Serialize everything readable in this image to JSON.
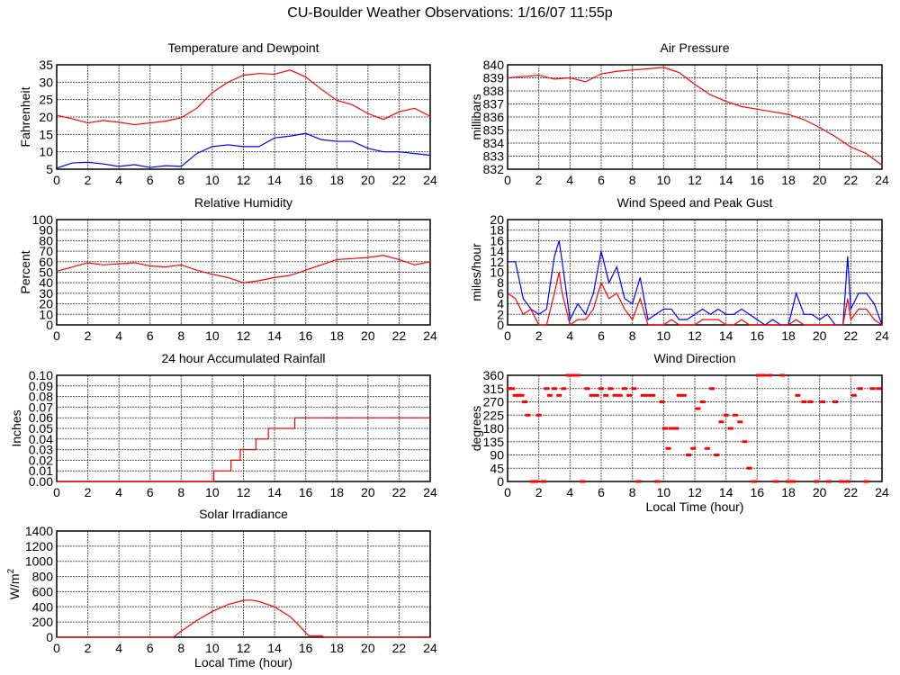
{
  "title": "CU-Boulder Weather Observations: 1/16/07 11:55p",
  "chart_data": [
    {
      "id": "temp",
      "type": "line",
      "title": "Temperature and Dewpoint",
      "ylabel": "Fahrenheit",
      "xlabel": "",
      "ylim": [
        5,
        35
      ],
      "yticks": [
        "5",
        "10",
        "15",
        "20",
        "25",
        "30",
        "35"
      ],
      "xlim": [
        0,
        24
      ],
      "xticks": [
        "0",
        "2",
        "4",
        "6",
        "8",
        "10",
        "12",
        "14",
        "16",
        "18",
        "20",
        "22",
        "24"
      ],
      "grid": true,
      "x": [
        0,
        1,
        2,
        3,
        4,
        5,
        6,
        7,
        8,
        9,
        10,
        11,
        12,
        13,
        14,
        15,
        16,
        17,
        18,
        19,
        20,
        21,
        22,
        23,
        24
      ],
      "series": [
        {
          "name": "Temperature",
          "color": "#ff0000",
          "values": [
            20.5,
            19.5,
            18.3,
            19,
            18.5,
            17.8,
            18.3,
            18.8,
            19.8,
            22.5,
            27,
            30,
            32,
            32.5,
            32.3,
            33.5,
            31.5,
            28,
            24.8,
            23.5,
            21,
            19.3,
            21.5,
            22.5,
            20.2
          ]
        },
        {
          "name": "Dewpoint",
          "color": "#0000ff",
          "values": [
            5.3,
            6.8,
            7,
            6.5,
            5.8,
            6.3,
            5.5,
            6,
            5.8,
            9.5,
            11.5,
            12,
            11.5,
            11.5,
            14,
            14.5,
            15.3,
            13.5,
            13,
            13,
            11,
            10,
            10,
            9.5,
            9
          ]
        }
      ]
    },
    {
      "id": "pressure",
      "type": "line",
      "title": "Air Pressure",
      "ylabel": "millibars",
      "xlabel": "",
      "ylim": [
        832,
        840
      ],
      "yticks": [
        "832",
        "833",
        "834",
        "835",
        "836",
        "837",
        "838",
        "839",
        "840"
      ],
      "xlim": [
        0,
        24
      ],
      "xticks": [
        "0",
        "2",
        "4",
        "6",
        "8",
        "10",
        "12",
        "14",
        "16",
        "18",
        "20",
        "22",
        "24"
      ],
      "grid": true,
      "x": [
        0,
        1,
        2,
        3,
        4,
        5,
        6,
        7,
        8,
        9,
        10,
        11,
        12,
        13,
        14,
        15,
        16,
        17,
        18,
        19,
        20,
        21,
        22,
        23,
        24
      ],
      "series": [
        {
          "name": "Pressure",
          "color": "#ff0000",
          "values": [
            839,
            839.1,
            839.2,
            838.9,
            839,
            838.7,
            839.3,
            839.5,
            839.6,
            839.7,
            839.8,
            839.4,
            838.5,
            837.7,
            837.2,
            836.8,
            836.6,
            836.4,
            836.2,
            835.8,
            835.2,
            834.5,
            833.7,
            833.2,
            832.3
          ]
        }
      ]
    },
    {
      "id": "rh",
      "type": "line",
      "title": "Relative Humidity",
      "ylabel": "Percent",
      "xlabel": "",
      "ylim": [
        0,
        100
      ],
      "yticks": [
        "0",
        "10",
        "20",
        "30",
        "40",
        "50",
        "60",
        "70",
        "80",
        "90",
        "100"
      ],
      "xlim": [
        0,
        24
      ],
      "xticks": [
        "0",
        "2",
        "4",
        "6",
        "8",
        "10",
        "12",
        "14",
        "16",
        "18",
        "20",
        "22",
        "24"
      ],
      "grid": true,
      "x": [
        0,
        1,
        2,
        3,
        4,
        5,
        6,
        7,
        8,
        9,
        10,
        11,
        12,
        13,
        14,
        15,
        16,
        17,
        18,
        19,
        20,
        21,
        22,
        23,
        24
      ],
      "series": [
        {
          "name": "Relative Humidity",
          "color": "#ff0000",
          "values": [
            51,
            55,
            59,
            57,
            58,
            59,
            56,
            55,
            57,
            52,
            48,
            45,
            40,
            42,
            45,
            47,
            52,
            57,
            62,
            63,
            64,
            66,
            62,
            57,
            60
          ]
        }
      ]
    },
    {
      "id": "wind",
      "type": "line",
      "title": "Wind Speed and Peak Gust",
      "ylabel": "miles/hour",
      "xlabel": "",
      "ylim": [
        0,
        20
      ],
      "yticks": [
        "0",
        "2",
        "4",
        "6",
        "8",
        "10",
        "12",
        "14",
        "16",
        "18",
        "20"
      ],
      "xlim": [
        0,
        24
      ],
      "xticks": [
        "0",
        "2",
        "4",
        "6",
        "8",
        "10",
        "12",
        "14",
        "16",
        "18",
        "20",
        "22",
        "24"
      ],
      "grid": true,
      "x": [
        0,
        0.5,
        1,
        1.5,
        2,
        2.5,
        3,
        3.3,
        3.5,
        4,
        4.5,
        5,
        5.5,
        6,
        6.5,
        7,
        7.5,
        8,
        8.5,
        9,
        9.5,
        10,
        10.5,
        11,
        11.5,
        12,
        12.5,
        13,
        13.5,
        14,
        14.5,
        15,
        15.5,
        16,
        16.5,
        17,
        17.5,
        18,
        18.5,
        19,
        19.5,
        20,
        20.5,
        21,
        21.5,
        21.8,
        22,
        22.5,
        23,
        23.5,
        24
      ],
      "series": [
        {
          "name": "Peak Gust",
          "color": "#0000ff",
          "values": [
            12,
            12,
            5,
            3,
            2,
            3,
            13,
            16,
            12,
            1,
            4,
            2,
            6,
            14,
            8,
            11,
            5,
            4,
            9,
            1,
            2,
            3,
            3,
            1,
            1,
            2,
            3,
            2,
            3,
            2,
            2,
            3,
            2,
            1,
            0,
            1,
            0,
            0,
            6,
            2,
            2,
            1,
            2,
            0,
            0,
            13,
            3,
            6,
            6,
            4,
            0
          ]
        },
        {
          "name": "Wind Speed",
          "color": "#ff0000",
          "values": [
            6,
            5,
            2,
            3,
            0,
            0,
            6,
            10,
            6,
            0,
            1,
            1,
            3,
            8,
            5,
            6,
            3,
            1,
            5,
            0,
            0,
            0,
            1,
            0,
            0,
            0,
            1,
            1,
            1,
            0,
            0,
            1,
            0,
            0,
            0,
            0,
            0,
            0,
            1,
            0,
            0,
            0,
            0,
            0,
            0,
            5,
            1,
            3,
            3,
            1,
            0
          ]
        }
      ]
    },
    {
      "id": "rain",
      "type": "step",
      "title": "24 hour Accumulated Rainfall",
      "ylabel": "Inches",
      "xlabel": "",
      "ylim": [
        0,
        0.1
      ],
      "yticks": [
        "0.00",
        "0.01",
        "0.02",
        "0.03",
        "0.04",
        "0.05",
        "0.06",
        "0.07",
        "0.08",
        "0.09",
        "0.10"
      ],
      "xlim": [
        0,
        24
      ],
      "xticks": [
        "0",
        "2",
        "4",
        "6",
        "8",
        "10",
        "12",
        "14",
        "16",
        "18",
        "20",
        "22",
        "24"
      ],
      "grid": true,
      "x": [
        0,
        10.1,
        11.2,
        11.8,
        12.8,
        13.6,
        15.3,
        24
      ],
      "series": [
        {
          "name": "Rainfall",
          "color": "#ff0000",
          "values": [
            0,
            0.01,
            0.02,
            0.03,
            0.04,
            0.05,
            0.06,
            0.06
          ]
        }
      ]
    },
    {
      "id": "winddir",
      "type": "scatter",
      "title": "Wind Direction",
      "ylabel": "degrees",
      "xlabel": "Local Time (hour)",
      "ylim": [
        0,
        360
      ],
      "yticks": [
        "0",
        "45",
        "90",
        "135",
        "180",
        "225",
        "270",
        "315",
        "360"
      ],
      "xlim": [
        0,
        24
      ],
      "xticks": [
        "0",
        "2",
        "4",
        "6",
        "8",
        "10",
        "12",
        "14",
        "16",
        "18",
        "20",
        "22",
        "24"
      ],
      "grid": true,
      "x": [
        0.1,
        0.3,
        0.5,
        0.7,
        0.9,
        1.1,
        1.3,
        1.6,
        1.8,
        2,
        2.3,
        2.5,
        2.7,
        3,
        3.3,
        3.6,
        3.9,
        4.2,
        4.5,
        4.8,
        5.1,
        5.4,
        5.7,
        6,
        6.3,
        6.6,
        6.9,
        7.2,
        7.5,
        7.8,
        8.1,
        8.4,
        8.7,
        9,
        9.3,
        9.6,
        9.9,
        10.1,
        10.3,
        10.5,
        10.8,
        11,
        11.3,
        11.6,
        11.9,
        12.2,
        12.5,
        12.8,
        13.1,
        13.4,
        13.7,
        14,
        14.3,
        14.6,
        14.9,
        15.2,
        15.5,
        15.8,
        16.1,
        16.4,
        16.8,
        17.2,
        17.6,
        18,
        18.3,
        18.6,
        19,
        19.4,
        19.8,
        20.2,
        20.6,
        21,
        21.4,
        21.8,
        22.2,
        22.6,
        23,
        23.4,
        23.8
      ],
      "series": [
        {
          "name": "Direction",
          "color": "#ff0000",
          "values": [
            315,
            315,
            292,
            292,
            292,
            270,
            225,
            0,
            0,
            225,
            0,
            315,
            292,
            315,
            292,
            315,
            360,
            360,
            360,
            0,
            315,
            292,
            292,
            315,
            292,
            315,
            292,
            292,
            315,
            292,
            315,
            0,
            292,
            292,
            292,
            0,
            270,
            180,
            112,
            180,
            180,
            292,
            292,
            90,
            112,
            247,
            270,
            112,
            315,
            90,
            202,
            225,
            180,
            225,
            202,
            135,
            45,
            0,
            360,
            360,
            360,
            0,
            360,
            0,
            0,
            292,
            270,
            270,
            0,
            270,
            0,
            270,
            0,
            0,
            292,
            315,
            0,
            315,
            315
          ]
        }
      ]
    },
    {
      "id": "solar",
      "type": "line",
      "title": "Solar Irradiance",
      "ylabel": "W/m",
      "ylabel_sup": "2",
      "xlabel": "Local Time (hour)",
      "ylim": [
        0,
        1400
      ],
      "yticks": [
        "0",
        "200",
        "400",
        "600",
        "800",
        "1000",
        "1200",
        "1400"
      ],
      "xlim": [
        0,
        24
      ],
      "xticks": [
        "0",
        "2",
        "4",
        "6",
        "8",
        "10",
        "12",
        "14",
        "16",
        "18",
        "20",
        "22",
        "24"
      ],
      "grid": true,
      "x": [
        0,
        7.5,
        8,
        9,
        10,
        11,
        12,
        12.5,
        13,
        14,
        15,
        15.5,
        16,
        16.2,
        17,
        17.2,
        24
      ],
      "series": [
        {
          "name": "Solar Irradiance",
          "color": "#ff0000",
          "values": [
            0,
            0,
            80,
            220,
            340,
            430,
            485,
            490,
            470,
            400,
            270,
            170,
            60,
            20,
            20,
            0,
            0
          ]
        }
      ]
    }
  ]
}
